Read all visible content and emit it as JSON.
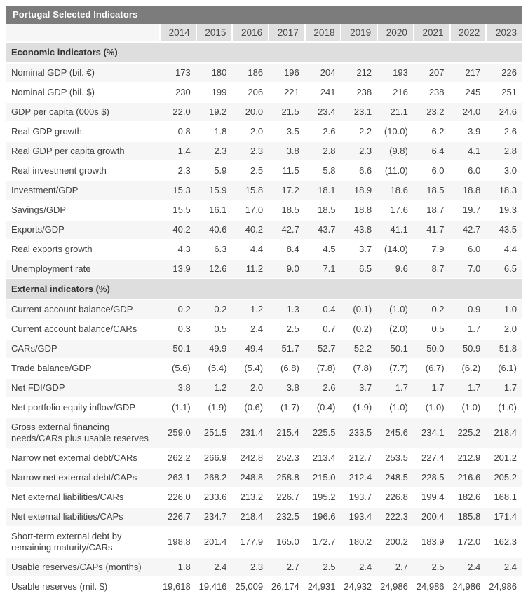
{
  "chart_data": {
    "type": "table",
    "title": "Portugal Selected Indicators",
    "columns": [
      "2014",
      "2015",
      "2016",
      "2017",
      "2018",
      "2019",
      "2020",
      "2021",
      "2022",
      "2023"
    ],
    "negative_convention": "parentheses",
    "sections": [
      {
        "header": "Economic indicators (%)",
        "rows": [
          {
            "label": "Nominal GDP (bil. €)",
            "values": [
              "173",
              "180",
              "186",
              "196",
              "204",
              "212",
              "193",
              "207",
              "217",
              "226"
            ]
          },
          {
            "label": "Nominal GDP (bil. $)",
            "values": [
              "230",
              "199",
              "206",
              "221",
              "241",
              "238",
              "216",
              "238",
              "245",
              "251"
            ]
          },
          {
            "label": "GDP per capita (000s $)",
            "values": [
              "22.0",
              "19.2",
              "20.0",
              "21.5",
              "23.4",
              "23.1",
              "21.1",
              "23.2",
              "24.0",
              "24.6"
            ]
          },
          {
            "label": "Real GDP growth",
            "values": [
              "0.8",
              "1.8",
              "2.0",
              "3.5",
              "2.6",
              "2.2",
              "(10.0)",
              "6.2",
              "3.9",
              "2.6"
            ]
          },
          {
            "label": "Real GDP per capita growth",
            "values": [
              "1.4",
              "2.3",
              "2.3",
              "3.8",
              "2.8",
              "2.3",
              "(9.8)",
              "6.4",
              "4.1",
              "2.8"
            ]
          },
          {
            "label": "Real investment growth",
            "values": [
              "2.3",
              "5.9",
              "2.5",
              "11.5",
              "5.8",
              "6.6",
              "(11.0)",
              "6.0",
              "6.0",
              "3.0"
            ]
          },
          {
            "label": "Investment/GDP",
            "values": [
              "15.3",
              "15.9",
              "15.8",
              "17.2",
              "18.1",
              "18.9",
              "18.6",
              "18.5",
              "18.8",
              "18.3"
            ]
          },
          {
            "label": "Savings/GDP",
            "values": [
              "15.5",
              "16.1",
              "17.0",
              "18.5",
              "18.5",
              "18.8",
              "17.6",
              "18.7",
              "19.7",
              "19.3"
            ]
          },
          {
            "label": "Exports/GDP",
            "values": [
              "40.2",
              "40.6",
              "40.2",
              "42.7",
              "43.7",
              "43.8",
              "41.1",
              "41.7",
              "42.7",
              "43.5"
            ]
          },
          {
            "label": "Real exports growth",
            "values": [
              "4.3",
              "6.3",
              "4.4",
              "8.4",
              "4.5",
              "3.7",
              "(14.0)",
              "7.9",
              "6.0",
              "4.4"
            ]
          },
          {
            "label": "Unemployment rate",
            "values": [
              "13.9",
              "12.6",
              "11.2",
              "9.0",
              "7.1",
              "6.5",
              "9.6",
              "8.7",
              "7.0",
              "6.5"
            ]
          }
        ]
      },
      {
        "header": "External indicators (%)",
        "rows": [
          {
            "label": "Current account balance/GDP",
            "values": [
              "0.2",
              "0.2",
              "1.2",
              "1.3",
              "0.4",
              "(0.1)",
              "(1.0)",
              "0.2",
              "0.9",
              "1.0"
            ]
          },
          {
            "label": "Current account balance/CARs",
            "values": [
              "0.3",
              "0.5",
              "2.4",
              "2.5",
              "0.7",
              "(0.2)",
              "(2.0)",
              "0.5",
              "1.7",
              "2.0"
            ]
          },
          {
            "label": "CARs/GDP",
            "values": [
              "50.1",
              "49.9",
              "49.4",
              "51.7",
              "52.7",
              "52.2",
              "50.1",
              "50.0",
              "50.9",
              "51.8"
            ]
          },
          {
            "label": "Trade balance/GDP",
            "values": [
              "(5.6)",
              "(5.4)",
              "(5.4)",
              "(6.8)",
              "(7.8)",
              "(7.8)",
              "(7.7)",
              "(6.7)",
              "(6.2)",
              "(6.1)"
            ]
          },
          {
            "label": "Net FDI/GDP",
            "values": [
              "3.8",
              "1.2",
              "2.0",
              "3.8",
              "2.6",
              "3.7",
              "1.7",
              "1.7",
              "1.7",
              "1.7"
            ]
          },
          {
            "label": "Net portfolio equity inflow/GDP",
            "values": [
              "(1.1)",
              "(1.9)",
              "(0.6)",
              "(1.7)",
              "(0.4)",
              "(1.9)",
              "(1.0)",
              "(1.0)",
              "(1.0)",
              "(1.0)"
            ]
          },
          {
            "label": "Gross external financing needs/CARs plus usable reserves",
            "values": [
              "259.0",
              "251.5",
              "231.4",
              "215.4",
              "225.5",
              "233.5",
              "245.6",
              "234.1",
              "225.2",
              "218.4"
            ]
          },
          {
            "label": "Narrow net external debt/CARs",
            "values": [
              "262.2",
              "266.9",
              "242.8",
              "252.3",
              "213.4",
              "212.7",
              "253.5",
              "227.4",
              "212.9",
              "201.2"
            ]
          },
          {
            "label": "Narrow net external debt/CAPs",
            "values": [
              "263.1",
              "268.2",
              "248.8",
              "258.8",
              "215.0",
              "212.4",
              "248.5",
              "228.5",
              "216.6",
              "205.2"
            ]
          },
          {
            "label": "Net external liabilities/CARs",
            "values": [
              "226.0",
              "233.6",
              "213.2",
              "226.7",
              "195.2",
              "193.7",
              "226.8",
              "199.4",
              "182.6",
              "168.1"
            ]
          },
          {
            "label": "Net external liabilities/CAPs",
            "values": [
              "226.7",
              "234.7",
              "218.4",
              "232.5",
              "196.6",
              "193.4",
              "222.3",
              "200.4",
              "185.8",
              "171.4"
            ]
          },
          {
            "label": "Short-term external debt by remaining maturity/CARs",
            "values": [
              "198.8",
              "201.4",
              "177.9",
              "165.0",
              "172.7",
              "180.2",
              "200.2",
              "183.9",
              "172.0",
              "162.3"
            ]
          },
          {
            "label": "Usable reserves/CAPs (months)",
            "values": [
              "1.8",
              "2.4",
              "2.3",
              "2.7",
              "2.5",
              "2.4",
              "2.7",
              "2.5",
              "2.4",
              "2.4"
            ]
          },
          {
            "label": "Usable reserves (mil. $)",
            "values": [
              "19,618",
              "19,416",
              "25,009",
              "26,174",
              "24,931",
              "24,932",
              "24,986",
              "24,986",
              "24,986",
              "24,986"
            ]
          }
        ]
      }
    ],
    "colors": {
      "titlebar_bg": "#7c7c7c",
      "titlebar_text": "#ffffff",
      "year_header_bg": "#e0e0e0",
      "corner_cell_bg": "#f6f6f6",
      "section_header_bg": "#dedede",
      "row_alt_bg": "#f6f6f6",
      "row_bg": "#ffffff",
      "text": "#3f3f3f"
    }
  }
}
